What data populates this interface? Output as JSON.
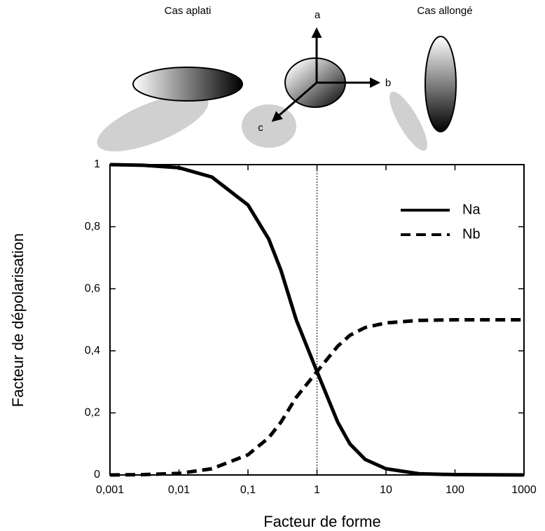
{
  "chart_data": {
    "type": "line",
    "xlabel": "Facteur de forme",
    "ylabel": "Facteur de dépolarisation",
    "annotations": [
      "Cas aplati",
      "Cas allongé",
      "a",
      "b",
      "c"
    ],
    "x": [
      0.001,
      0.003,
      0.01,
      0.03,
      0.1,
      0.2,
      0.3,
      0.5,
      1,
      2,
      3,
      5,
      10,
      30,
      100,
      1000
    ],
    "series": [
      {
        "name": "Na",
        "color": "#000000",
        "dash": false,
        "values": [
          1.0,
          0.998,
          0.99,
          0.96,
          0.87,
          0.76,
          0.66,
          0.5,
          0.333,
          0.17,
          0.1,
          0.05,
          0.02,
          0.004,
          0.001,
          0.0
        ]
      },
      {
        "name": "Nb",
        "color": "#000000",
        "dash": true,
        "values": [
          0.0,
          0.001,
          0.005,
          0.02,
          0.065,
          0.12,
          0.17,
          0.25,
          0.333,
          0.415,
          0.45,
          0.475,
          0.49,
          0.498,
          0.5,
          0.5
        ]
      }
    ],
    "log_x": true,
    "xlim": [
      0.001,
      1000
    ],
    "ylim": [
      0,
      1
    ],
    "xticks": [
      {
        "value": 0.001,
        "label": "0,001"
      },
      {
        "value": 0.01,
        "label": "0,01"
      },
      {
        "value": 0.1,
        "label": "0,1"
      },
      1,
      10,
      100,
      1000
    ],
    "yticks": [
      0,
      {
        "value": 0.2,
        "label": "0,2"
      },
      {
        "value": 0.4,
        "label": "0,4"
      },
      {
        "value": 0.6,
        "label": "0,6"
      },
      {
        "value": 0.8,
        "label": "0,8"
      },
      1
    ],
    "vline": 1,
    "legend": "upper right"
  }
}
